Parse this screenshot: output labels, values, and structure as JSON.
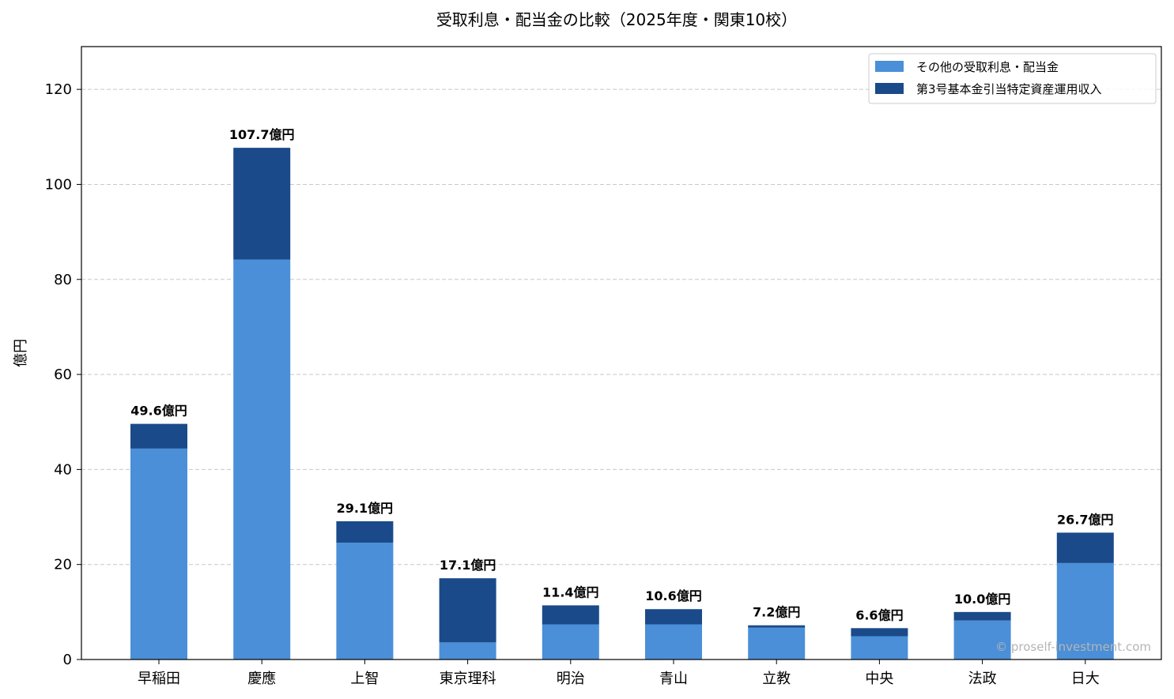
{
  "chart_data": {
    "type": "bar",
    "stacked": true,
    "title": "受取利息・配当金の比較（2025年度・関東10校）",
    "xlabel": "",
    "ylabel": "億円",
    "ylim": [
      0,
      129
    ],
    "yticks": [
      0,
      20,
      40,
      60,
      80,
      100,
      120
    ],
    "grid": "horizontal dashed",
    "legend_position": "top-right",
    "categories": [
      "早稲田",
      "慶應",
      "上智",
      "東京理科",
      "明治",
      "青山",
      "立教",
      "中央",
      "法政",
      "日大"
    ],
    "series": [
      {
        "name": "その他の受取利息・配当金",
        "color": "#4a8fd8",
        "values": [
          44.4,
          84.2,
          24.6,
          3.6,
          7.4,
          7.4,
          6.7,
          4.9,
          8.2,
          20.3
        ]
      },
      {
        "name": "第3号基本金引当特定資産運用収入",
        "color": "#1b4a8a",
        "values": [
          5.2,
          23.5,
          4.5,
          13.5,
          4.0,
          3.2,
          0.5,
          1.7,
          1.8,
          6.4
        ]
      }
    ],
    "totals": [
      49.6,
      107.7,
      29.1,
      17.1,
      11.4,
      10.6,
      7.2,
      6.6,
      10.0,
      26.7
    ],
    "total_labels": [
      "49.6億円",
      "107.7億円",
      "29.1億円",
      "17.1億円",
      "11.4億円",
      "10.6億円",
      "7.2億円",
      "6.6億円",
      "10.0億円",
      "26.7億円"
    ],
    "watermark": "© proself-investment.com"
  }
}
